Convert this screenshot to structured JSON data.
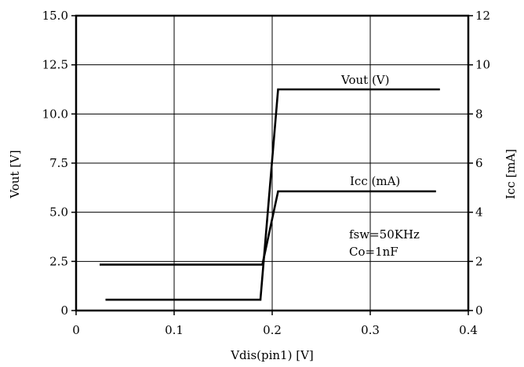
{
  "chart_data": {
    "type": "line",
    "title": "",
    "xlabel": "Vdis(pin1) [V]",
    "ylabel_left": "Vout [V]",
    "ylabel_right": "Icc [mA]",
    "xlim": [
      0,
      0.4
    ],
    "ylim_left": [
      0,
      15
    ],
    "ylim_right": [
      0,
      12
    ],
    "x_ticks": [
      "0",
      "0.1",
      "0.2",
      "0.3",
      "0.4"
    ],
    "x_tick_values": [
      0,
      0.1,
      0.2,
      0.3,
      0.4
    ],
    "y_left_ticks": [
      "0",
      "2.5",
      "5.0",
      "7.5",
      "10.0",
      "12.5",
      "15.0"
    ],
    "y_left_tick_values": [
      0,
      2.5,
      5,
      7.5,
      10,
      12.5,
      15
    ],
    "y_right_ticks": [
      "0",
      "2",
      "4",
      "6",
      "8",
      "10",
      "12"
    ],
    "y_right_tick_values": [
      0,
      2,
      4,
      6,
      8,
      10,
      12
    ],
    "grid": true,
    "series": [
      {
        "name": "Vout (V)",
        "axis": "left",
        "x": [
          0.03,
          0.188,
          0.206,
          0.371
        ],
        "y": [
          0.55,
          0.55,
          11.25,
          11.25
        ]
      },
      {
        "name": "Icc (mA)",
        "axis": "right",
        "x": [
          0.024,
          0.19,
          0.206,
          0.367
        ],
        "y": [
          1.87,
          1.87,
          4.85,
          4.85
        ]
      }
    ],
    "annotations": [
      "fsw=50KHz",
      "Co=1nF"
    ]
  }
}
